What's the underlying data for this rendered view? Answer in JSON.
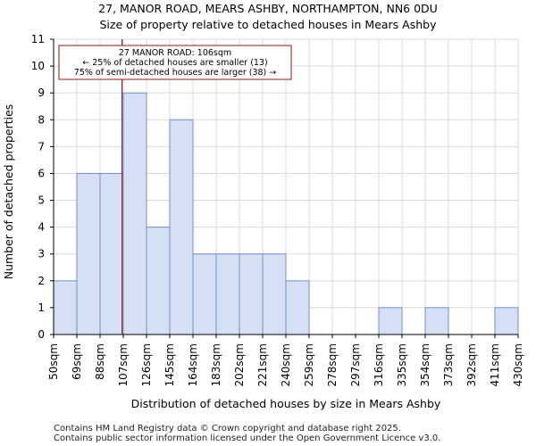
{
  "chart_data": {
    "type": "bar",
    "title": "27, MANOR ROAD, MEARS ASHBY, NORTHAMPTON, NN6 0DU",
    "subtitle": "Size of property relative to detached houses in Mears Ashby",
    "xlabel": "Distribution of detached houses by size in Mears Ashby",
    "ylabel": "Number of detached properties",
    "bin_edges": [
      "50sqm",
      "69sqm",
      "88sqm",
      "107sqm",
      "126sqm",
      "145sqm",
      "164sqm",
      "183sqm",
      "202sqm",
      "221sqm",
      "240sqm",
      "259sqm",
      "278sqm",
      "297sqm",
      "316sqm",
      "335sqm",
      "354sqm",
      "373sqm",
      "392sqm",
      "411sqm",
      "430sqm"
    ],
    "values": [
      2,
      6,
      6,
      9,
      4,
      8,
      3,
      3,
      3,
      3,
      2,
      0,
      0,
      0,
      1,
      0,
      1,
      0,
      0,
      1
    ],
    "ylim": [
      0,
      11
    ],
    "yticks": [
      0,
      1,
      2,
      3,
      4,
      5,
      6,
      7,
      8,
      9,
      10,
      11
    ],
    "grid": true,
    "bar_color": "#d6e0f5",
    "bar_edge_color": "#6f8fc9",
    "marker": {
      "value_sqm": 106,
      "color": "#8b1a1a",
      "annotation": [
        "27 MANOR ROAD: 106sqm",
        "← 25% of detached houses are smaller (13)",
        "75% of semi-detached houses are larger (38) →"
      ]
    }
  },
  "footer": [
    "Contains HM Land Registry data © Crown copyright and database right 2025.",
    "Contains public sector information licensed under the Open Government Licence v3.0."
  ]
}
